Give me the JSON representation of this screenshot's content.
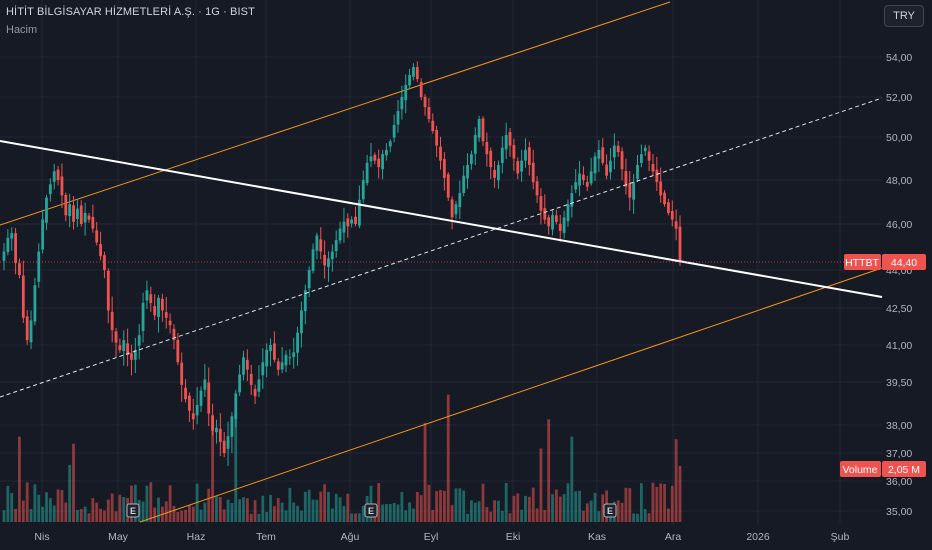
{
  "header": {
    "title": "HİTİT BİLGİSAYAR HİZMETLERİ A.Ş. · 1G · BIST",
    "subtitle": "Hacim",
    "currency_button": "TRY"
  },
  "colors": {
    "background": "#161a25",
    "up": "#26a69a",
    "down": "#ef5350",
    "channel": "#f7931a",
    "trendline": "#ffffff"
  },
  "chart_data": {
    "type": "candlestick",
    "symbol": "HTTBT",
    "y_axis_ticks": [
      "54,00",
      "52,00",
      "50,00",
      "48,00",
      "46,00",
      "44,00",
      "42,50",
      "41,00",
      "39,50",
      "38,00",
      "37,00",
      "36,00",
      "35,00"
    ],
    "x_axis_ticks": [
      "Nis",
      "May",
      "Haz",
      "Tem",
      "Ağu",
      "Eyl",
      "Eki",
      "Kas",
      "Ara",
      "2026",
      "Şub"
    ],
    "last_price": "44,40",
    "last_volume_label": "Volume",
    "last_volume_value": "2,05 M",
    "earnings_markers": [
      "E",
      "E",
      "E"
    ],
    "close_path": [
      44.8,
      45.4,
      45.6,
      44.3,
      43.8,
      42.1,
      41.2,
      42.0,
      43.4,
      44.8,
      46.2,
      47.2,
      47.8,
      48.4,
      48.0,
      47.3,
      46.4,
      46.9,
      46.1,
      46.7,
      46.0,
      46.5,
      46.2,
      45.8,
      45.2,
      44.6,
      44.0,
      42.4,
      41.6,
      41.1,
      40.8,
      41.2,
      40.6,
      40.4,
      40.8,
      41.4,
      42.7,
      43.2,
      42.7,
      42.2,
      42.9,
      42.4,
      42.1,
      41.8,
      41.2,
      40.3,
      39.4,
      38.9,
      38.5,
      38.2,
      38.7,
      39.2,
      39.6,
      38.4,
      37.8,
      37.9,
      37.4,
      37.0,
      37.6,
      38.3,
      39.1,
      39.8,
      40.5,
      40.0,
      39.4,
      39.0,
      39.6,
      40.3,
      40.8,
      41.0,
      40.4,
      40.0,
      40.3,
      40.6,
      40.5,
      40.7,
      41.5,
      42.4,
      43.2,
      44.0,
      44.9,
      45.5,
      44.8,
      44.2,
      44.5,
      44.8,
      45.3,
      45.8,
      46.1,
      45.9,
      46.2,
      46.0,
      47.1,
      48.0,
      48.8,
      49.1,
      48.9,
      48.6,
      49.2,
      49.4,
      49.8,
      50.6,
      51.3,
      52.0,
      52.6,
      53.1,
      53.5,
      52.9,
      52.0,
      51.5,
      50.9,
      50.3,
      49.6,
      48.9,
      48.1,
      47.2,
      46.3,
      46.9,
      47.4,
      48.2,
      48.7,
      49.2,
      50.1,
      50.9,
      49.8,
      49.2,
      48.6,
      48.1,
      48.7,
      49.5,
      50.1,
      49.6,
      49.0,
      48.3,
      48.9,
      49.4,
      48.7,
      47.9,
      47.3,
      46.6,
      46.2,
      45.9,
      46.4,
      46.1,
      45.7,
      46.3,
      46.9,
      47.4,
      47.9,
      48.3,
      48.0,
      47.7,
      48.4,
      49.1,
      49.4,
      48.8,
      48.2,
      48.9,
      49.6,
      49.3,
      48.5,
      47.7,
      47.2,
      47.9,
      48.7,
      49.2,
      49.5,
      48.9,
      48.4,
      47.9,
      47.3,
      46.9,
      46.5,
      46.2,
      45.8,
      44.4
    ]
  }
}
